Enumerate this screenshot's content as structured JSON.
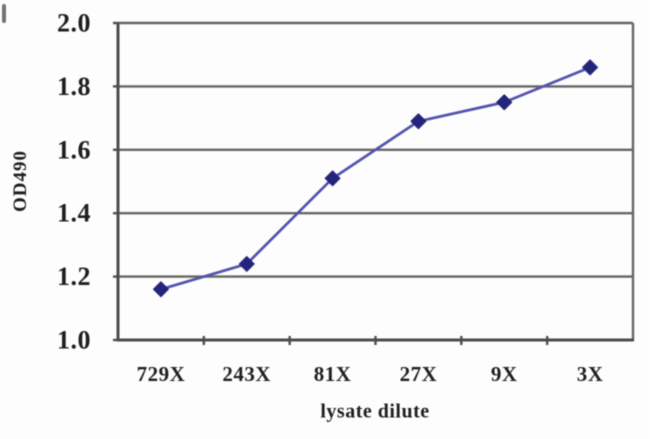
{
  "chart_data": {
    "type": "line",
    "title": "",
    "categories": [
      "729X",
      "243X",
      "81X",
      "27X",
      "9X",
      "3X"
    ],
    "series": [
      {
        "name": "OD490",
        "values": [
          1.16,
          1.24,
          1.51,
          1.69,
          1.75,
          1.86
        ]
      }
    ],
    "xlabel": "lysate dilute",
    "ylabel": "OD490",
    "ylim": [
      1.0,
      2.0
    ],
    "ytick_step": 0.2,
    "ytick_labels": [
      "1.0",
      "1.2",
      "1.4",
      "1.6",
      "1.8",
      "2.0"
    ],
    "grid": "horizontal",
    "legend": "none",
    "marker_shape": "diamond",
    "colors": {
      "line": "#5353ae",
      "marker": "#24247d",
      "grid": "#666666",
      "axis": "#4d4d4d",
      "text": "#1f1f1f",
      "background": "#fdfdfd"
    }
  }
}
